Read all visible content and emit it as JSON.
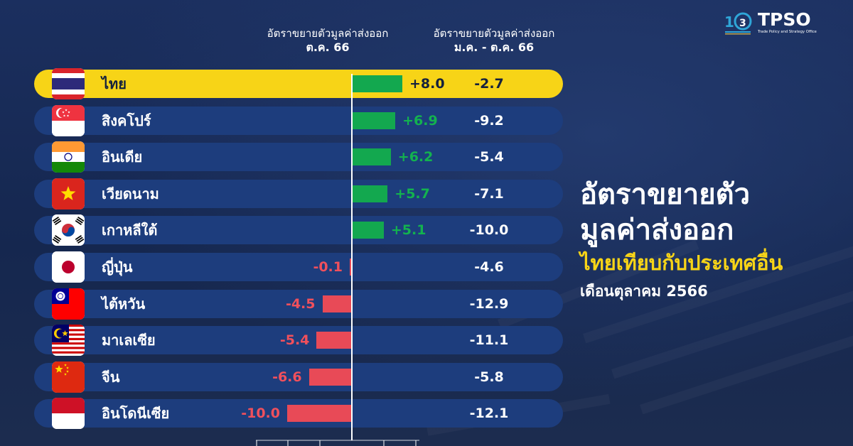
{
  "logos": {
    "anniversary_number": "103",
    "org_short": "TPSO",
    "org_full": "Trade Policy and Strategy Office"
  },
  "headers": {
    "oct_line1": "อัตราขยายตัวมูลค่าส่งออก",
    "oct_line2": "ต.ค. 66",
    "ytd_line1": "อัตราขยายตัวมูลค่าส่งออก",
    "ytd_line2": "ม.ค. - ต.ค. 66"
  },
  "title": {
    "line1": "อัตราขยายตัว",
    "line2": "มูลค่าส่งออก",
    "line3": "ไทยเทียบกับประเทศอื่น",
    "line4": "เดือนตุลาคม 2566"
  },
  "colors": {
    "background": "#15274f",
    "row": "#1d3d7d",
    "highlight": "#f7d417",
    "positive": "#13a84f",
    "negative": "#e84a57"
  },
  "chart_data": {
    "type": "bar",
    "orientation": "horizontal",
    "categories": [
      "ไทย",
      "สิงคโปร์",
      "อินเดีย",
      "เวียดนาม",
      "เกาหลีใต้",
      "ญี่ปุ่น",
      "ไต้หวัน",
      "มาเลเซีย",
      "จีน",
      "อินโดนีเซีย"
    ],
    "flags": [
      "thailand-flag-icon",
      "singapore-flag-icon",
      "india-flag-icon",
      "vietnam-flag-icon",
      "south-korea-flag-icon",
      "japan-flag-icon",
      "taiwan-flag-icon",
      "malaysia-flag-icon",
      "china-flag-icon",
      "indonesia-flag-icon"
    ],
    "series": [
      {
        "values": [
          8.0,
          6.9,
          6.2,
          5.7,
          5.1,
          -0.1,
          -4.5,
          -5.4,
          -6.6,
          -10.0
        ],
        "labels": [
          "+8.0",
          "+6.9",
          "+6.2",
          "+5.7",
          "+5.1",
          "-0.1",
          "-4.5",
          "-5.4",
          "-6.6",
          "-10.0"
        ]
      },
      {
        "values": [
          -2.7,
          -9.2,
          -5.4,
          -7.1,
          -10.0,
          -4.6,
          -12.9,
          -11.1,
          -5.8,
          -12.1
        ],
        "labels": [
          "-2.7",
          "-9.2",
          "-5.4",
          "-7.1",
          "-10.0",
          "-4.6",
          "-12.9",
          "-11.1",
          "-5.8",
          "-12.1"
        ]
      }
    ],
    "highlight_category": "ไทย",
    "xlim": [
      -15,
      15
    ],
    "grid": false,
    "legend": "none"
  }
}
